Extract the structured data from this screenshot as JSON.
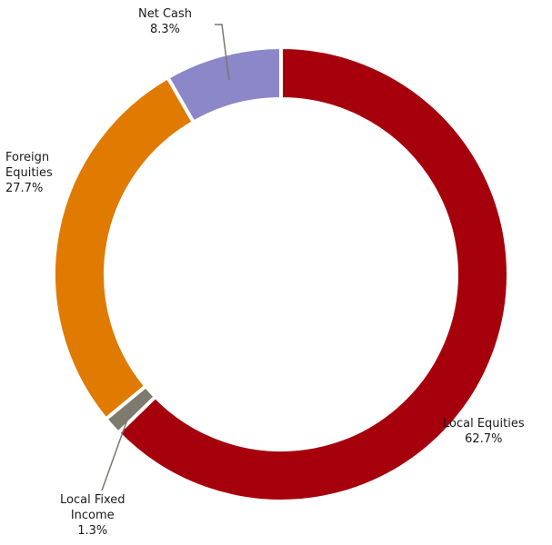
{
  "chart_data": {
    "type": "pie",
    "style": "donut",
    "slices": [
      {
        "name": "Local Equities",
        "value": 62.7,
        "value_label": "62.7%",
        "color": "#A6000C",
        "label_lines": [
          "Local Equities"
        ]
      },
      {
        "name": "Local Fixed Income",
        "value": 1.3,
        "value_label": "1.3%",
        "color": "#7F7A6E",
        "label_lines": [
          "Local Fixed",
          "Income"
        ]
      },
      {
        "name": "Foreign Equities",
        "value": 27.7,
        "value_label": "27.7%",
        "color": "#E07A00",
        "label_lines": [
          "Foreign",
          "Equities"
        ]
      },
      {
        "name": "Net Cash",
        "value": 8.3,
        "value_label": "8.3%",
        "color": "#8C87C9",
        "label_lines": [
          "Net Cash"
        ]
      }
    ],
    "start": "12 o'clock",
    "direction": "clockwise",
    "legend": "none"
  }
}
